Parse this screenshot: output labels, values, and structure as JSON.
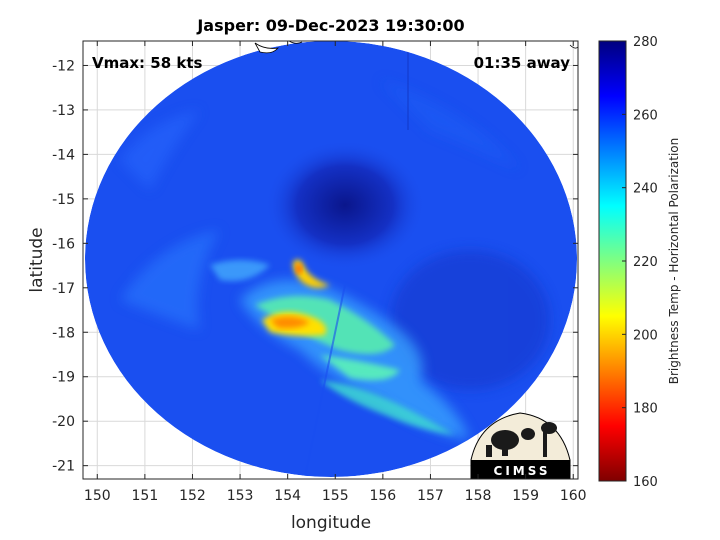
{
  "chart_data": {
    "type": "heatmap",
    "title": "Jasper: 09-Dec-2023 19:30:00",
    "xlabel": "longitude",
    "ylabel": "latitude",
    "xlim": [
      149.7,
      160.1
    ],
    "ylim": [
      -21.3,
      -11.45
    ],
    "xticks": [
      150,
      151,
      152,
      153,
      154,
      155,
      156,
      157,
      158,
      159,
      160
    ],
    "yticks": [
      -12,
      -13,
      -14,
      -15,
      -16,
      -17,
      -18,
      -19,
      -20,
      -21
    ],
    "grid": true,
    "annotations": {
      "vmax": "Vmax: 58 kts",
      "time_away": "01:35 away"
    },
    "colorbar": {
      "label": "Brightness Temp - Horizontal Polarization",
      "min": 160,
      "max": 280,
      "ticks": [
        160,
        180,
        200,
        220,
        240,
        260,
        280
      ],
      "colors": [
        "#7f0000",
        "#ff0000",
        "#ff8000",
        "#ffff00",
        "#80ff80",
        "#00ffff",
        "#0080ff",
        "#0000ff",
        "#00007f"
      ]
    },
    "storm_center": {
      "lon": 155.0,
      "lat": -15.7
    },
    "logo": "CIMSS"
  },
  "colors": {
    "background": "#ffffff",
    "swath_base": "#1a4ff0",
    "eye": "#0c1a9a"
  }
}
